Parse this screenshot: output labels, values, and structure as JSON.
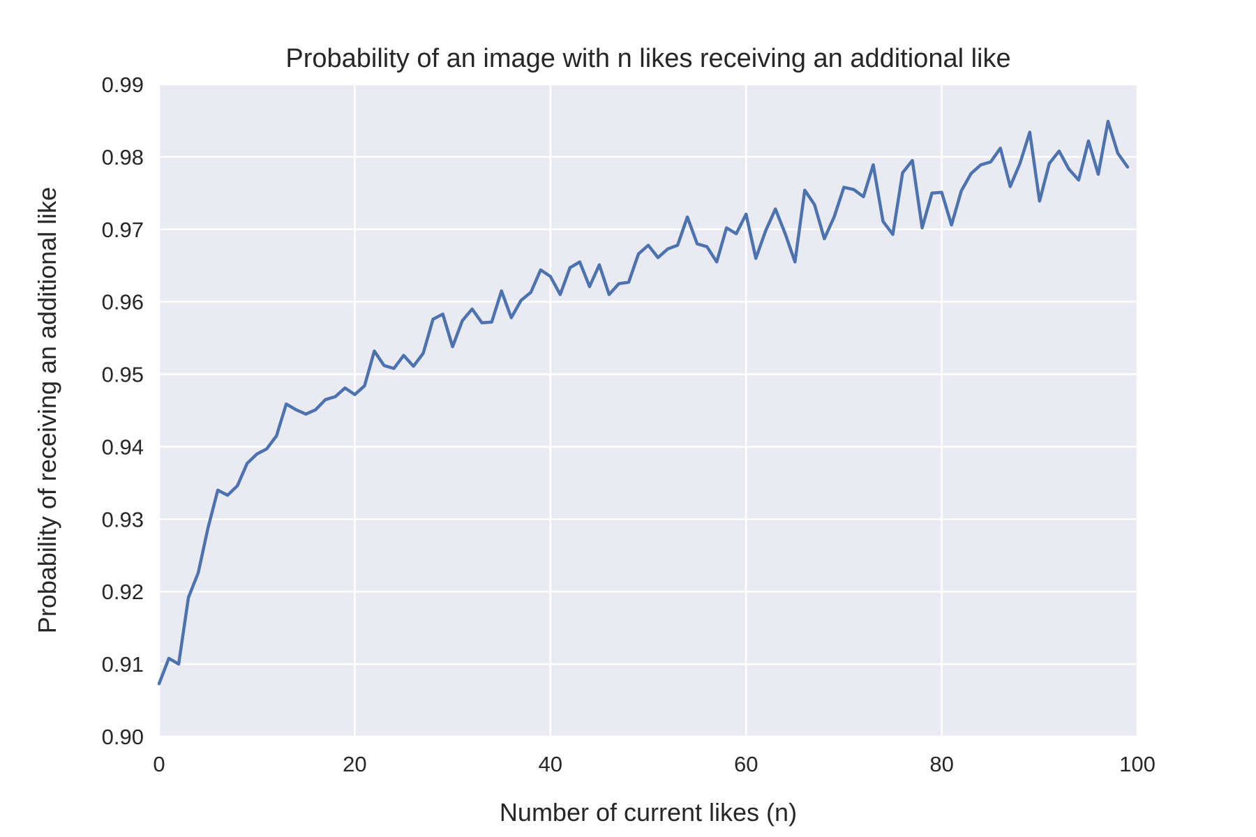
{
  "chart_data": {
    "type": "line",
    "title": "Probability of an image with n likes receiving an additional like",
    "xlabel": "Number of current likes (n)",
    "ylabel": "Probability of receiving an additional like",
    "xlim": [
      0,
      100
    ],
    "ylim": [
      0.9,
      0.99
    ],
    "xticks": [
      0,
      20,
      40,
      60,
      80,
      100
    ],
    "xtick_labels": [
      "0",
      "20",
      "40",
      "60",
      "80",
      "100"
    ],
    "yticks": [
      0.9,
      0.91,
      0.92,
      0.93,
      0.94,
      0.95,
      0.96,
      0.97,
      0.98,
      0.99
    ],
    "ytick_labels": [
      "0.90",
      "0.91",
      "0.92",
      "0.93",
      "0.94",
      "0.95",
      "0.96",
      "0.97",
      "0.98",
      "0.99"
    ],
    "grid": true,
    "legend": "none",
    "background_color": "#eaeaf2",
    "grid_color": "#ffffff",
    "series": [
      {
        "color": "#4c72b0",
        "x": [
          0,
          1,
          2,
          3,
          4,
          5,
          6,
          7,
          8,
          9,
          10,
          11,
          12,
          13,
          14,
          15,
          16,
          17,
          18,
          19,
          20,
          21,
          22,
          23,
          24,
          25,
          26,
          27,
          28,
          29,
          30,
          31,
          32,
          33,
          34,
          35,
          36,
          37,
          38,
          39,
          40,
          41,
          42,
          43,
          44,
          45,
          46,
          47,
          48,
          49,
          50,
          51,
          52,
          53,
          54,
          55,
          56,
          57,
          58,
          59,
          60,
          61,
          62,
          63,
          64,
          65,
          66,
          67,
          68,
          69,
          70,
          71,
          72,
          73,
          74,
          75,
          76,
          77,
          78,
          79,
          80,
          81,
          82,
          83,
          84,
          85,
          86,
          87,
          88,
          89,
          90,
          91,
          92,
          93,
          94,
          95,
          96,
          97,
          98,
          99
        ],
        "values": [
          0.9073,
          0.9108,
          0.91,
          0.9192,
          0.9226,
          0.9288,
          0.934,
          0.9333,
          0.9346,
          0.9377,
          0.939,
          0.9397,
          0.9415,
          0.9459,
          0.9451,
          0.9445,
          0.9451,
          0.9465,
          0.9469,
          0.9481,
          0.9472,
          0.9484,
          0.9532,
          0.9512,
          0.9508,
          0.9526,
          0.9511,
          0.9529,
          0.9576,
          0.9583,
          0.9538,
          0.9574,
          0.959,
          0.9571,
          0.9572,
          0.9615,
          0.9578,
          0.9602,
          0.9613,
          0.9644,
          0.9635,
          0.961,
          0.9647,
          0.9655,
          0.9621,
          0.9651,
          0.961,
          0.9625,
          0.9627,
          0.9666,
          0.9678,
          0.9661,
          0.9673,
          0.9678,
          0.9717,
          0.968,
          0.9676,
          0.9655,
          0.9702,
          0.9694,
          0.9721,
          0.966,
          0.9698,
          0.9728,
          0.9694,
          0.9655,
          0.9754,
          0.9734,
          0.9687,
          0.9717,
          0.9758,
          0.9755,
          0.9745,
          0.9789,
          0.9711,
          0.9693,
          0.9778,
          0.9795,
          0.9702,
          0.975,
          0.9751,
          0.9706,
          0.9753,
          0.9777,
          0.9789,
          0.9793,
          0.9812,
          0.9759,
          0.9791,
          0.9834,
          0.9739,
          0.9791,
          0.9808,
          0.9783,
          0.9768,
          0.9822,
          0.9776,
          0.9849,
          0.9805,
          0.9786
        ]
      }
    ]
  }
}
